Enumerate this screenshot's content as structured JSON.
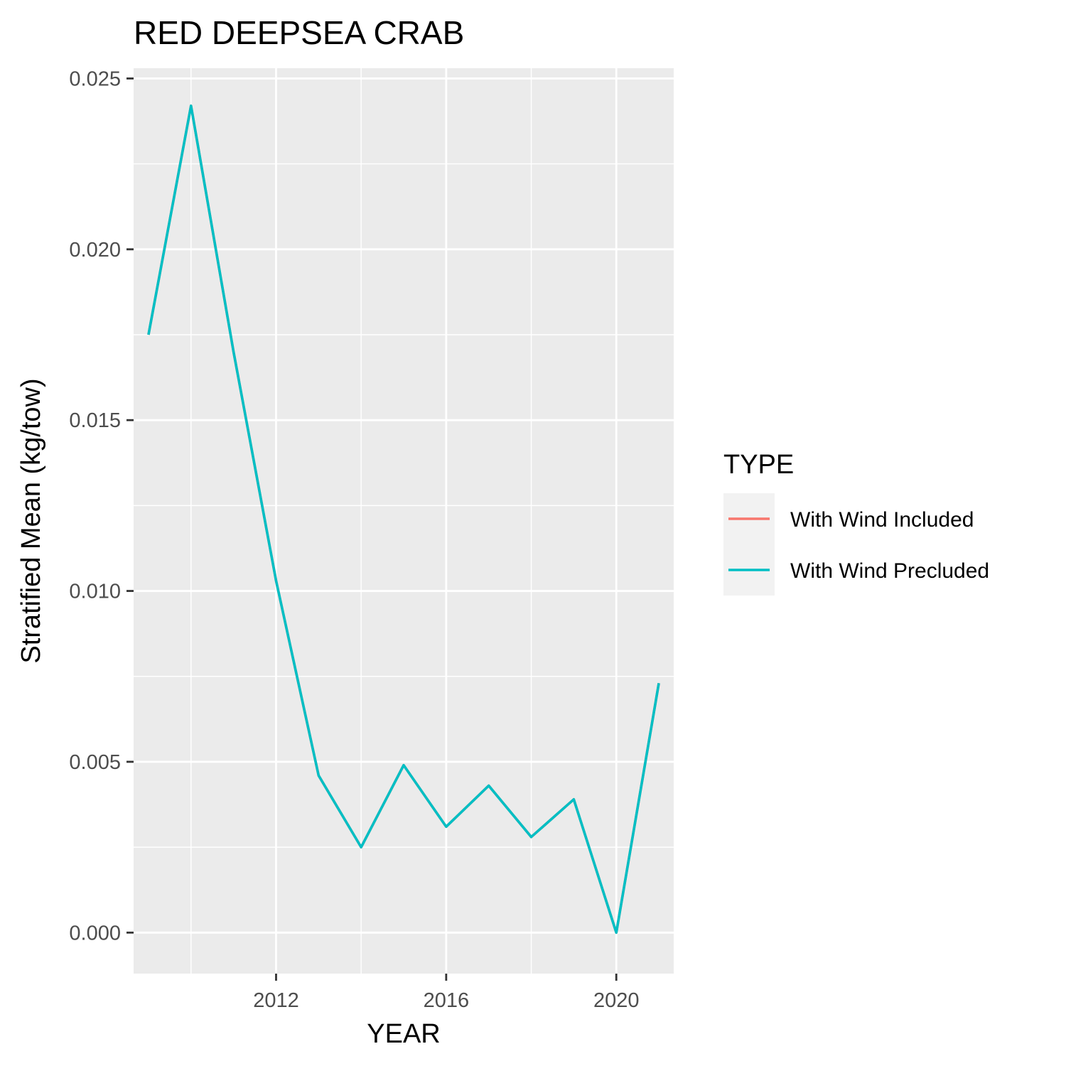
{
  "chart_data": {
    "type": "line",
    "title": "RED DEEPSEA CRAB",
    "xlabel": "YEAR",
    "ylabel": "Stratified Mean (kg/tow)",
    "x": [
      2009,
      2010,
      2011,
      2012,
      2013,
      2014,
      2015,
      2016,
      2017,
      2018,
      2019,
      2020,
      2021
    ],
    "xlim": [
      2008.65,
      2021.35
    ],
    "ylim": [
      -0.0012,
      0.0253
    ],
    "x_ticks": [
      2012,
      2016,
      2020
    ],
    "x_tick_labels": [
      "2012",
      "2016",
      "2020"
    ],
    "x_minor_ticks": [
      2010,
      2014,
      2018
    ],
    "y_ticks": [
      0.0,
      0.005,
      0.01,
      0.015,
      0.02,
      0.025
    ],
    "y_tick_labels": [
      "0.000",
      "0.005",
      "0.010",
      "0.015",
      "0.020",
      "0.025"
    ],
    "y_minor_ticks": [
      0.0025,
      0.0075,
      0.0125,
      0.0175,
      0.0225
    ],
    "grid": true,
    "legend": {
      "title": "TYPE",
      "position": "right",
      "entries": [
        {
          "label": "With Wind Included",
          "color": "#F8766D"
        },
        {
          "label": "With Wind Precluded",
          "color": "#00BFC4"
        }
      ]
    },
    "series": [
      {
        "name": "With Wind Included",
        "color": "#F8766D",
        "values": [
          0.0175,
          0.0242,
          0.017,
          0.0103,
          0.0046,
          0.0025,
          0.0049,
          0.0031,
          0.0043,
          0.0028,
          0.0039,
          0.0,
          0.0073
        ]
      },
      {
        "name": "With Wind Precluded",
        "color": "#00BFC4",
        "values": [
          0.0175,
          0.0242,
          0.017,
          0.0103,
          0.0046,
          0.0025,
          0.0049,
          0.0031,
          0.0043,
          0.0028,
          0.0039,
          0.0,
          0.0073
        ]
      }
    ],
    "panel_background": "#EBEBEB",
    "grid_color": "#FFFFFF",
    "legend_key_background": "#F2F2F2"
  }
}
